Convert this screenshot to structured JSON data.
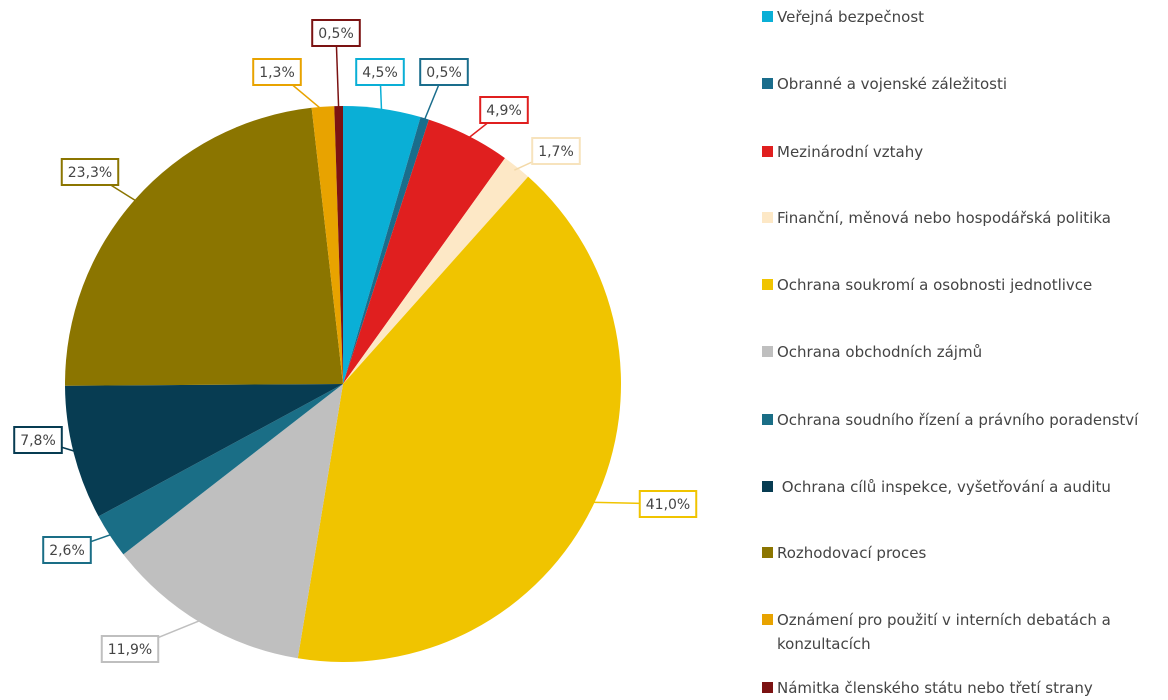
{
  "chart_data": {
    "type": "pie",
    "categories": [
      "Veřejná bezpečnost",
      "Obranné a vojenské záležitosti",
      "Mezinárodní vztahy",
      "Finanční, měnová nebo hospodářská politika",
      "Ochrana soukromí a osobnosti jednotlivce",
      "Ochrana obchodních zájmů",
      "Ochrana soudního řízení a právního poradenství",
      " Ochrana cílů inspekce, vyšetřování a auditu",
      "Rozhodovací proces",
      "Oznámení pro použití v interních debatách a konzultacích",
      "Námitka členského státu nebo třetí strany"
    ],
    "values": [
      4.5,
      0.5,
      4.9,
      1.7,
      41.0,
      11.9,
      2.6,
      7.8,
      23.3,
      1.3,
      0.5
    ],
    "value_labels": [
      "4,5%",
      "0,5%",
      "4,9%",
      "1,7%",
      "41,0%",
      "11,9%",
      "2,6%",
      "7,8%",
      "23,3%",
      "1,3%",
      "0,5%"
    ],
    "colors": [
      "#0aafd6",
      "#1a6d8c",
      "#e01f1f",
      "#fde8c6",
      "#f0c400",
      "#bfbfbf",
      "#1a6e86",
      "#073c52",
      "#8b7500",
      "#e8a300",
      "#7b1212"
    ],
    "legend": "right"
  }
}
